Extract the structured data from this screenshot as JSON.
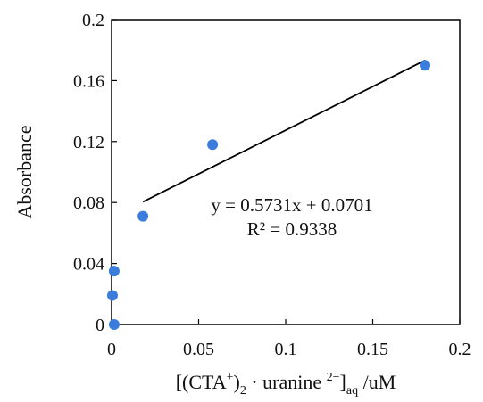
{
  "chart_data": {
    "type": "scatter",
    "title": "",
    "xlabel_parts": {
      "open": "[(CTA",
      "sup1": "+",
      "close": ")",
      "sub1": "2",
      "mid": " · uranine ",
      "sup2": "2−",
      "bracket": "]",
      "sub2": "aq",
      "unit": " /uM"
    },
    "ylabel": "Absorbance",
    "xlim": [
      0,
      0.2
    ],
    "ylim": [
      0,
      0.2
    ],
    "x_ticks": [
      0,
      0.05,
      0.1,
      0.15,
      0.2
    ],
    "x_tick_labels": [
      "0",
      "0.05",
      "0.1",
      "0.15",
      "0.2"
    ],
    "y_ticks": [
      0,
      0.04,
      0.08,
      0.12,
      0.16,
      0.2
    ],
    "y_tick_labels": [
      "0",
      "0.04",
      "0.08",
      "0.12",
      "0.16",
      "0.2"
    ],
    "points": [
      {
        "x": 0.0015,
        "y": 0.0
      },
      {
        "x": 0.0005,
        "y": 0.019
      },
      {
        "x": 0.0015,
        "y": 0.035
      },
      {
        "x": 0.018,
        "y": 0.071
      },
      {
        "x": 0.058,
        "y": 0.118
      },
      {
        "x": 0.18,
        "y": 0.17
      }
    ],
    "trendline": {
      "slope": 0.5731,
      "intercept": 0.0701,
      "x_range": [
        0.018,
        0.18
      ],
      "equation": "y = 0.5731x + 0.0701",
      "r2_label": "R² = 0.9338"
    },
    "marker_color": "#3B7DDD",
    "line_color": "#000000",
    "grid": false
  }
}
